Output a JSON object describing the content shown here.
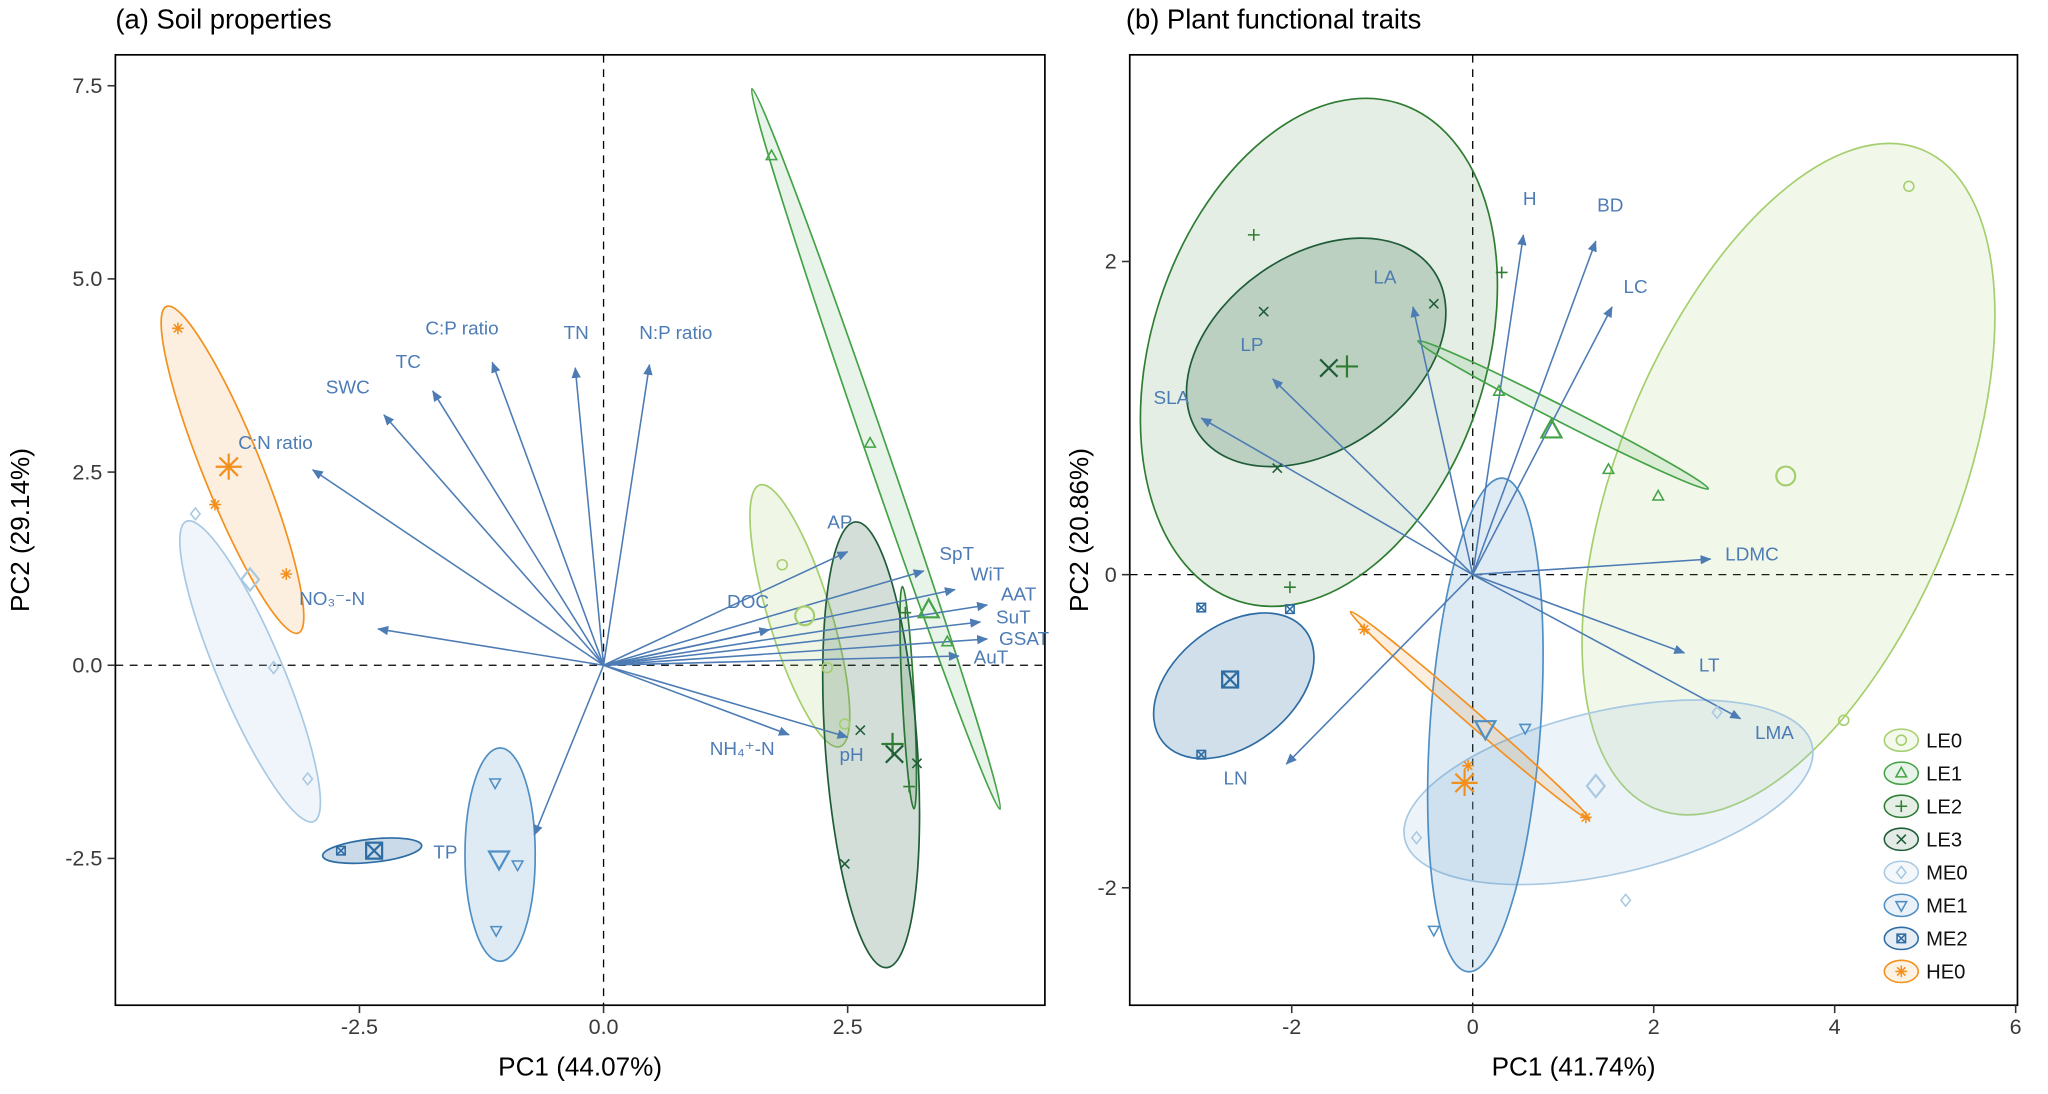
{
  "colors": {
    "arrow": "#4d7cb5",
    "tick_text": "#3a3a3a",
    "axis_text": "#000000",
    "zero_line": "#000000",
    "panel_border": "#000000"
  },
  "legend": {
    "items": [
      {
        "id": "LE0",
        "marker": "circle",
        "color": "#a5cf6e"
      },
      {
        "id": "LE1",
        "marker": "triangle-up",
        "color": "#45a347"
      },
      {
        "id": "LE2",
        "marker": "plus",
        "color": "#2e7d32"
      },
      {
        "id": "LE3",
        "marker": "x",
        "color": "#1f5c38"
      },
      {
        "id": "ME0",
        "marker": "diamond",
        "color": "#a9c9e2"
      },
      {
        "id": "ME1",
        "marker": "triangle-down",
        "color": "#4f8fc4"
      },
      {
        "id": "ME2",
        "marker": "boxed-x",
        "color": "#2e6da4"
      },
      {
        "id": "HE0",
        "marker": "asterisk",
        "color": "#f3901d"
      }
    ]
  },
  "chart_data": [
    {
      "type": "scatter",
      "panel": "a",
      "title": "(a) Soil properties",
      "xlabel": "PC1 (44.07%)",
      "ylabel": "PC2 (29.14%)",
      "xlim": [
        -5.0,
        4.52
      ],
      "ylim": [
        -4.4,
        7.9
      ],
      "grid": false,
      "zero_lines": true,
      "xticks": [
        {
          "v": -2.5,
          "label": "-2.5"
        },
        {
          "v": 0,
          "label": "0.0"
        },
        {
          "v": 2.5,
          "label": "2.5"
        }
      ],
      "yticks": [
        {
          "v": -2.5,
          "label": "-2.5"
        },
        {
          "v": 0,
          "label": "0.0"
        },
        {
          "v": 2.5,
          "label": "2.5"
        },
        {
          "v": 5,
          "label": "5.0"
        },
        {
          "v": 7.5,
          "label": "7.5"
        }
      ],
      "loadings": [
        {
          "var": "C:P ratio",
          "x": -1.14,
          "y": 3.92,
          "lx": -1.45,
          "ly": 4.28,
          "anchor": "middle"
        },
        {
          "var": "TC",
          "x": -1.75,
          "y": 3.55,
          "lx": -2.0,
          "ly": 3.85,
          "anchor": "middle"
        },
        {
          "var": "SWC",
          "x": -2.25,
          "y": 3.24,
          "lx": -2.62,
          "ly": 3.52,
          "anchor": "middle"
        },
        {
          "var": "C:N ratio",
          "x": -2.98,
          "y": 2.53,
          "lx": -3.36,
          "ly": 2.8,
          "anchor": "middle"
        },
        {
          "var": "TN",
          "x": -0.29,
          "y": 3.85,
          "lx": -0.28,
          "ly": 4.22,
          "anchor": "middle"
        },
        {
          "var": "N:P ratio",
          "x": 0.47,
          "y": 3.89,
          "lx": 0.74,
          "ly": 4.22,
          "anchor": "middle"
        },
        {
          "var": "NO₃⁻-N",
          "x": -2.31,
          "y": 0.47,
          "lx": -2.78,
          "ly": 0.78,
          "anchor": "middle"
        },
        {
          "var": "DOC",
          "x": 1.7,
          "y": 0.46,
          "lx": 1.48,
          "ly": 0.74,
          "anchor": "middle"
        },
        {
          "var": "AP",
          "x": 2.5,
          "y": 1.47,
          "lx": 2.42,
          "ly": 1.77,
          "anchor": "middle"
        },
        {
          "var": "SpT",
          "x": 3.28,
          "y": 1.22,
          "lx": 3.44,
          "ly": 1.36,
          "anchor": "start"
        },
        {
          "var": "WiT",
          "x": 3.6,
          "y": 0.98,
          "lx": 3.76,
          "ly": 1.1,
          "anchor": "start"
        },
        {
          "var": "AAT",
          "x": 3.93,
          "y": 0.78,
          "lx": 4.07,
          "ly": 0.84,
          "anchor": "start"
        },
        {
          "var": "SuT",
          "x": 3.86,
          "y": 0.56,
          "lx": 4.02,
          "ly": 0.54,
          "anchor": "start"
        },
        {
          "var": "GSAT",
          "x": 3.93,
          "y": 0.34,
          "lx": 4.05,
          "ly": 0.26,
          "anchor": "start"
        },
        {
          "var": "AuT",
          "x": 3.64,
          "y": 0.12,
          "lx": 3.79,
          "ly": 0.02,
          "anchor": "start"
        },
        {
          "var": "NH₄⁺-N",
          "x": 1.9,
          "y": -0.9,
          "lx": 1.42,
          "ly": -1.16,
          "anchor": "middle"
        },
        {
          "var": "pH",
          "x": 2.5,
          "y": -0.93,
          "lx": 2.54,
          "ly": -1.24,
          "anchor": "middle"
        },
        {
          "var": "TP",
          "x": -0.71,
          "y": -2.2,
          "lx": -1.62,
          "ly": -2.5,
          "anchor": "middle"
        }
      ],
      "groups": [
        {
          "id": "HE0",
          "marker": "asterisk",
          "color": "#f3901d",
          "fill_opacity": 0.14,
          "ellipse": {
            "cx": -3.8,
            "cy": 2.53,
            "rx": 0.3,
            "ry": 2.28,
            "angle": -22
          },
          "points": [
            {
              "x": -4.36,
              "y": 4.36,
              "size": "s"
            },
            {
              "x": -3.84,
              "y": 2.57,
              "size": "l"
            },
            {
              "x": -3.98,
              "y": 2.08,
              "size": "s"
            },
            {
              "x": -3.25,
              "y": 1.18,
              "size": "s"
            }
          ]
        },
        {
          "id": "ME0",
          "marker": "diamond",
          "color": "#a9c9e2",
          "fill_opacity": 0.18,
          "ellipse": {
            "cx": -3.62,
            "cy": -0.08,
            "rx": 0.33,
            "ry": 2.11,
            "angle": -23
          },
          "points": [
            {
              "x": -4.18,
              "y": 1.96,
              "size": "s"
            },
            {
              "x": -3.62,
              "y": 1.11,
              "size": "l"
            },
            {
              "x": -3.38,
              "y": -0.03,
              "size": "s"
            },
            {
              "x": -3.03,
              "y": -1.47,
              "size": "s"
            }
          ]
        },
        {
          "id": "ME1",
          "marker": "triangle-down",
          "color": "#4f8fc4",
          "fill_opacity": 0.18,
          "ellipse": {
            "cx": -1.06,
            "cy": -2.45,
            "rx": 0.36,
            "ry": 1.38,
            "angle": 0
          },
          "points": [
            {
              "x": -1.11,
              "y": -1.52,
              "size": "s"
            },
            {
              "x": -1.07,
              "y": -2.5,
              "size": "l"
            },
            {
              "x": -0.88,
              "y": -2.58,
              "size": "s"
            },
            {
              "x": -1.1,
              "y": -3.43,
              "size": "s"
            }
          ]
        },
        {
          "id": "ME2",
          "marker": "boxed-x",
          "color": "#2e6da4",
          "fill_opacity": 0.25,
          "ellipse": {
            "cx": -2.37,
            "cy": -2.4,
            "rx": 0.51,
            "ry": 0.15,
            "angle": -6
          },
          "points": [
            {
              "x": -2.69,
              "y": -2.4,
              "size": "s"
            },
            {
              "x": -2.35,
              "y": -2.4,
              "size": "l"
            }
          ]
        },
        {
          "id": "LE0",
          "marker": "circle",
          "color": "#a5cf6e",
          "fill_opacity": 0.18,
          "ellipse": {
            "cx": 2.01,
            "cy": 0.64,
            "rx": 0.32,
            "ry": 1.77,
            "angle": -17
          },
          "points": [
            {
              "x": 1.83,
              "y": 1.3,
              "size": "s"
            },
            {
              "x": 2.06,
              "y": 0.64,
              "size": "l"
            },
            {
              "x": 2.29,
              "y": -0.03,
              "size": "s"
            },
            {
              "x": 2.47,
              "y": -0.76,
              "size": "s"
            }
          ]
        },
        {
          "id": "LE1",
          "marker": "triangle-up",
          "color": "#45a347",
          "fill_opacity": 0.12,
          "ellipse": {
            "cx": 2.79,
            "cy": 2.8,
            "rx": 0.11,
            "ry": 4.93,
            "angle": -19
          },
          "points": [
            {
              "x": 1.72,
              "y": 6.59,
              "size": "s"
            },
            {
              "x": 2.73,
              "y": 2.87,
              "size": "s"
            },
            {
              "x": 3.33,
              "y": 0.71,
              "size": "l"
            },
            {
              "x": 3.52,
              "y": 0.3,
              "size": "s"
            }
          ]
        },
        {
          "id": "LE2",
          "marker": "plus",
          "color": "#2e7d32",
          "fill_opacity": 0.15,
          "ellipse": {
            "cx": 3.12,
            "cy": -0.42,
            "rx": 0.06,
            "ry": 1.44,
            "angle": -3
          },
          "points": [
            {
              "x": 3.09,
              "y": 0.68,
              "size": "s"
            },
            {
              "x": 2.96,
              "y": -1.02,
              "size": "l"
            },
            {
              "x": 3.13,
              "y": -1.57,
              "size": "s"
            }
          ]
        },
        {
          "id": "LE3",
          "marker": "x",
          "color": "#1f5c38",
          "fill_opacity": 0.2,
          "ellipse": {
            "cx": 2.74,
            "cy": -1.03,
            "rx": 0.47,
            "ry": 2.89,
            "angle": -4
          },
          "points": [
            {
              "x": 2.63,
              "y": -0.84,
              "size": "s"
            },
            {
              "x": 2.98,
              "y": -1.15,
              "size": "l"
            },
            {
              "x": 3.21,
              "y": -1.27,
              "size": "s"
            },
            {
              "x": 2.47,
              "y": -2.57,
              "size": "s"
            }
          ]
        }
      ]
    },
    {
      "type": "scatter",
      "panel": "b",
      "title": "(b) Plant functional traits",
      "xlabel": "PC1 (41.74%)",
      "ylabel": "PC2 (20.86%)",
      "xlim": [
        -3.79,
        6.02
      ],
      "ylim": [
        -2.75,
        3.32
      ],
      "grid": false,
      "zero_lines": true,
      "xticks": [
        {
          "v": -2,
          "label": "-2"
        },
        {
          "v": 0,
          "label": "0"
        },
        {
          "v": 2,
          "label": "2"
        },
        {
          "v": 4,
          "label": "4"
        },
        {
          "v": 6,
          "label": "6"
        }
      ],
      "yticks": [
        {
          "v": -2,
          "label": "-2"
        },
        {
          "v": 0,
          "label": "0"
        },
        {
          "v": 2,
          "label": "2"
        }
      ],
      "loadings": [
        {
          "var": "H",
          "x": 0.56,
          "y": 2.17,
          "lx": 0.63,
          "ly": 2.36,
          "anchor": "middle"
        },
        {
          "var": "BD",
          "x": 1.36,
          "y": 2.13,
          "lx": 1.52,
          "ly": 2.32,
          "anchor": "middle"
        },
        {
          "var": "LC",
          "x": 1.54,
          "y": 1.71,
          "lx": 1.8,
          "ly": 1.8,
          "anchor": "middle"
        },
        {
          "var": "LA",
          "x": -0.66,
          "y": 1.71,
          "lx": -0.97,
          "ly": 1.86,
          "anchor": "middle"
        },
        {
          "var": "LP",
          "x": -2.21,
          "y": 1.25,
          "lx": -2.44,
          "ly": 1.43,
          "anchor": "middle"
        },
        {
          "var": "SLA",
          "x": -3.0,
          "y": 1.0,
          "lx": -3.33,
          "ly": 1.09,
          "anchor": "middle"
        },
        {
          "var": "LDMC",
          "x": 2.63,
          "y": 0.1,
          "lx": 2.79,
          "ly": 0.09,
          "anchor": "start"
        },
        {
          "var": "LT",
          "x": 2.34,
          "y": -0.5,
          "lx": 2.5,
          "ly": -0.62,
          "anchor": "start"
        },
        {
          "var": "LMA",
          "x": 2.96,
          "y": -0.92,
          "lx": 3.12,
          "ly": -1.05,
          "anchor": "start"
        },
        {
          "var": "LN",
          "x": -2.06,
          "y": -1.21,
          "lx": -2.62,
          "ly": -1.34,
          "anchor": "middle"
        }
      ],
      "groups": [
        {
          "id": "LE0",
          "marker": "circle",
          "color": "#a5cf6e",
          "fill_opacity": 0.15,
          "ellipse": {
            "cx": 3.49,
            "cy": 0.61,
            "rx": 1.88,
            "ry": 2.27,
            "angle": 22
          },
          "points": [
            {
              "x": 4.82,
              "y": 2.48,
              "size": "s"
            },
            {
              "x": 3.46,
              "y": 0.63,
              "size": "l"
            },
            {
              "x": 4.1,
              "y": -0.93,
              "size": "s"
            }
          ]
        },
        {
          "id": "LE2",
          "marker": "plus",
          "color": "#2e7d32",
          "fill_opacity": 0.13,
          "ellipse": {
            "cx": -1.7,
            "cy": 1.42,
            "rx": 1.85,
            "ry": 1.67,
            "angle": 18
          },
          "points": [
            {
              "x": -2.42,
              "y": 2.17,
              "size": "s"
            },
            {
              "x": 0.32,
              "y": 1.93,
              "size": "s"
            },
            {
              "x": -1.39,
              "y": 1.33,
              "size": "l"
            },
            {
              "x": -2.02,
              "y": -0.08,
              "size": "s"
            }
          ]
        },
        {
          "id": "LE3",
          "marker": "x",
          "color": "#1f5c38",
          "fill_opacity": 0.2,
          "ellipse": {
            "cx": -1.73,
            "cy": 1.42,
            "rx": 1.58,
            "ry": 0.62,
            "angle": -35
          },
          "points": [
            {
              "x": -2.31,
              "y": 1.68,
              "size": "s"
            },
            {
              "x": -0.43,
              "y": 1.73,
              "size": "s"
            },
            {
              "x": -2.16,
              "y": 0.68,
              "size": "s"
            },
            {
              "x": -1.59,
              "y": 1.32,
              "size": "l"
            }
          ]
        },
        {
          "id": "ME0",
          "marker": "diamond",
          "color": "#a9c9e2",
          "fill_opacity": 0.22,
          "ellipse": {
            "cx": 1.5,
            "cy": -1.39,
            "rx": 2.31,
            "ry": 0.52,
            "angle": -13
          },
          "points": [
            {
              "x": 2.7,
              "y": -0.88,
              "size": "s"
            },
            {
              "x": 1.36,
              "y": -1.35,
              "size": "l"
            },
            {
              "x": -0.62,
              "y": -1.68,
              "size": "s"
            },
            {
              "x": 1.69,
              "y": -2.08,
              "size": "s"
            }
          ]
        },
        {
          "id": "ME1",
          "marker": "triangle-down",
          "color": "#4f8fc4",
          "fill_opacity": 0.18,
          "ellipse": {
            "cx": 0.14,
            "cy": -0.96,
            "rx": 0.61,
            "ry": 1.58,
            "angle": 4
          },
          "points": [
            {
              "x": 0.14,
              "y": -0.98,
              "size": "l"
            },
            {
              "x": 0.58,
              "y": -0.98,
              "size": "s"
            },
            {
              "x": -0.43,
              "y": -2.27,
              "size": "s"
            }
          ]
        },
        {
          "id": "ME2",
          "marker": "boxed-x",
          "color": "#2e6da4",
          "fill_opacity": 0.22,
          "ellipse": {
            "cx": -2.64,
            "cy": -0.71,
            "rx": 1.0,
            "ry": 0.38,
            "angle": -38
          },
          "points": [
            {
              "x": -3.0,
              "y": -0.21,
              "size": "s"
            },
            {
              "x": -2.02,
              "y": -0.22,
              "size": "s"
            },
            {
              "x": -2.68,
              "y": -0.67,
              "size": "l"
            },
            {
              "x": -3.0,
              "y": -1.15,
              "size": "s"
            }
          ]
        },
        {
          "id": "LE1",
          "marker": "triangle-up",
          "color": "#45a347",
          "fill_opacity": 0.12,
          "ellipse": {
            "cx": 1.0,
            "cy": 1.02,
            "rx": 1.8,
            "ry": 0.05,
            "angle": 27
          },
          "points": [
            {
              "x": 0.29,
              "y": 1.17,
              "size": "s"
            },
            {
              "x": 0.87,
              "y": 0.92,
              "size": "l"
            },
            {
              "x": 1.5,
              "y": 0.67,
              "size": "s"
            },
            {
              "x": 2.05,
              "y": 0.5,
              "size": "s"
            }
          ]
        },
        {
          "id": "HE0",
          "marker": "asterisk",
          "color": "#f3901d",
          "fill_opacity": 0.14,
          "ellipse": {
            "cx": -0.03,
            "cy": -0.9,
            "rx": 1.75,
            "ry": 0.045,
            "angle": 41
          },
          "points": [
            {
              "x": -0.09,
              "y": -1.33,
              "size": "l"
            },
            {
              "x": -1.2,
              "y": -0.35,
              "size": "s"
            },
            {
              "x": -0.05,
              "y": -1.22,
              "size": "s"
            },
            {
              "x": 1.25,
              "y": -1.55,
              "size": "s"
            }
          ]
        }
      ]
    }
  ]
}
